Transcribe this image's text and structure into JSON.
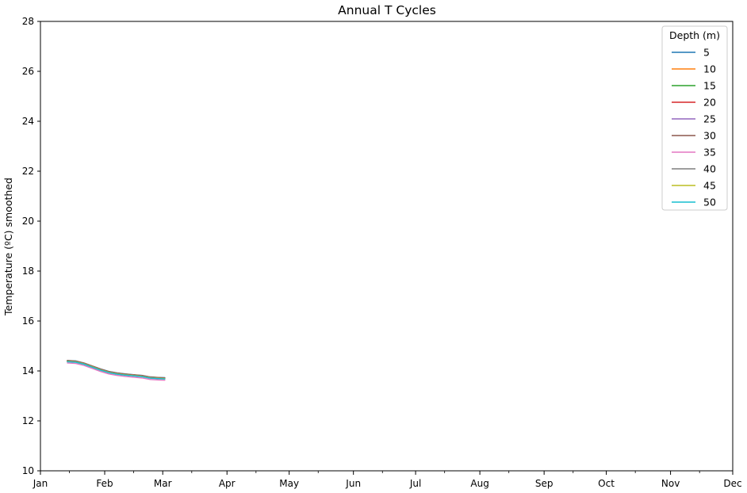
{
  "chart_data": {
    "type": "line",
    "title": "Annual T Cycles",
    "xlabel": "",
    "ylabel": "Temperature (ºC) smoothed",
    "ylim": [
      10,
      28
    ],
    "yticks": [
      10,
      12,
      14,
      16,
      18,
      20,
      22,
      24,
      26,
      28
    ],
    "xlim": [
      1,
      335
    ],
    "xtick_days": [
      1,
      32,
      60,
      91,
      121,
      152,
      182,
      213,
      244,
      274,
      305,
      335
    ],
    "xtick_labels": [
      "Jan",
      "Feb",
      "Mar",
      "Apr",
      "May",
      "Jun",
      "Jul",
      "Aug",
      "Sep",
      "Oct",
      "Nov",
      "Dec"
    ],
    "grid": false,
    "legend": {
      "title": "Depth (m)",
      "placement": "top-right"
    },
    "x": [
      14,
      18,
      22,
      26,
      30,
      34,
      38,
      42,
      46,
      50,
      54,
      58,
      61
    ],
    "series": [
      {
        "name": "5",
        "color": "#1f77b4",
        "values": [
          14.42,
          14.4,
          14.32,
          14.2,
          14.08,
          13.98,
          13.92,
          13.88,
          13.85,
          13.82,
          13.76,
          13.74,
          13.73
        ]
      },
      {
        "name": "10",
        "color": "#ff7f0e",
        "values": [
          14.41,
          14.39,
          14.31,
          14.19,
          14.07,
          13.97,
          13.91,
          13.87,
          13.84,
          13.81,
          13.75,
          13.73,
          13.72
        ]
      },
      {
        "name": "15",
        "color": "#2ca02c",
        "values": [
          14.4,
          14.38,
          14.3,
          14.18,
          14.06,
          13.96,
          13.9,
          13.86,
          13.83,
          13.8,
          13.74,
          13.72,
          13.71
        ]
      },
      {
        "name": "20",
        "color": "#d62728",
        "values": [
          14.4,
          14.38,
          14.3,
          14.18,
          14.06,
          13.96,
          13.9,
          13.86,
          13.83,
          13.8,
          13.74,
          13.72,
          13.71
        ]
      },
      {
        "name": "25",
        "color": "#9467bd",
        "values": [
          14.39,
          14.37,
          14.29,
          14.17,
          14.05,
          13.95,
          13.89,
          13.85,
          13.82,
          13.79,
          13.73,
          13.71,
          13.7
        ]
      },
      {
        "name": "30",
        "color": "#8c564b",
        "values": [
          14.38,
          14.36,
          14.28,
          14.16,
          14.04,
          13.94,
          13.88,
          13.84,
          13.81,
          13.78,
          13.72,
          13.7,
          13.69
        ]
      },
      {
        "name": "35",
        "color": "#e377c2",
        "values": [
          14.32,
          14.3,
          14.22,
          14.1,
          13.98,
          13.88,
          13.82,
          13.78,
          13.75,
          13.72,
          13.66,
          13.64,
          13.63
        ]
      },
      {
        "name": "40",
        "color": "#7f7f7f",
        "values": [
          14.39,
          14.37,
          14.29,
          14.17,
          14.05,
          13.95,
          13.89,
          13.85,
          13.82,
          13.79,
          13.73,
          13.71,
          13.7
        ]
      },
      {
        "name": "45",
        "color": "#bcbd22",
        "values": [
          14.38,
          14.36,
          14.28,
          14.16,
          14.04,
          13.94,
          13.88,
          13.84,
          13.81,
          13.78,
          13.72,
          13.7,
          13.69
        ]
      },
      {
        "name": "50",
        "color": "#17becf",
        "values": [
          14.37,
          14.35,
          14.27,
          14.15,
          14.03,
          13.93,
          13.87,
          13.83,
          13.8,
          13.77,
          13.71,
          13.69,
          13.68
        ]
      }
    ]
  }
}
